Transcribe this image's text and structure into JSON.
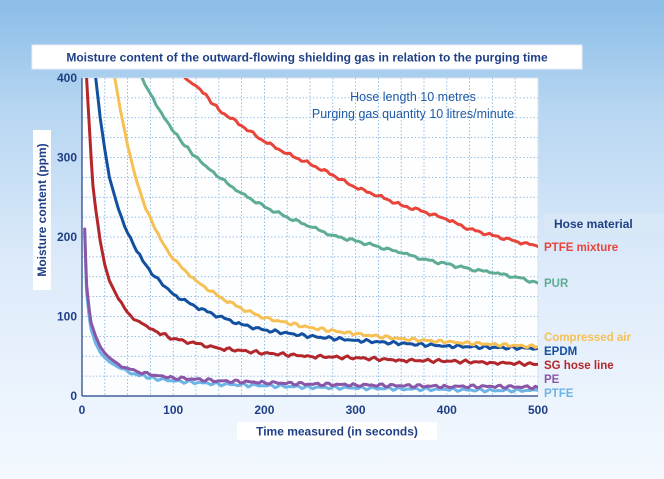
{
  "chart_data": {
    "type": "line",
    "title": "Moisture content of the outward-flowing shielding gas in relation to the purging time",
    "xlabel": "Time measured (in seconds)",
    "ylabel": "Moisture content (ppm)",
    "xlim": [
      0,
      500
    ],
    "ylim": [
      0,
      400
    ],
    "x_ticks": [
      "0",
      "100",
      "200",
      "300",
      "400",
      "500"
    ],
    "y_ticks": [
      "0",
      "100",
      "200",
      "300",
      "400"
    ],
    "grid": "on, dotted",
    "annotation": [
      "Hose length 10 metres",
      "Purging gas quantity 10 litres/minute"
    ],
    "legend_title": "Hose material",
    "legend_placement": "right",
    "series": [
      {
        "name": "PTFE mixture",
        "color": "#e8443a",
        "x": [
          113,
          130,
          150,
          175,
          200,
          225,
          250,
          275,
          300,
          325,
          350,
          375,
          400,
          425,
          450,
          475,
          500
        ],
        "y": [
          400,
          385,
          360,
          340,
          320,
          305,
          292,
          278,
          262,
          252,
          240,
          232,
          222,
          210,
          202,
          195,
          188
        ]
      },
      {
        "name": "PUR",
        "color": "#5fac94",
        "x": [
          66,
          75,
          90,
          110,
          130,
          150,
          175,
          200,
          225,
          250,
          275,
          300,
          325,
          350,
          375,
          400,
          425,
          450,
          475,
          500
        ],
        "y": [
          400,
          380,
          350,
          318,
          295,
          275,
          255,
          238,
          225,
          213,
          202,
          195,
          188,
          180,
          172,
          166,
          160,
          155,
          150,
          142
        ]
      },
      {
        "name": "Compressed air",
        "color": "#f6c055",
        "x": [
          36,
          42,
          50,
          60,
          70,
          80,
          90,
          100,
          125,
          150,
          175,
          200,
          250,
          300,
          350,
          400,
          450,
          500
        ],
        "y": [
          400,
          360,
          315,
          270,
          235,
          210,
          190,
          172,
          145,
          125,
          110,
          98,
          86,
          78,
          72,
          68,
          65,
          62
        ]
      },
      {
        "name": "EPDM",
        "color": "#1350a0",
        "x": [
          15,
          20,
          25,
          30,
          40,
          50,
          60,
          70,
          80,
          100,
          125,
          150,
          175,
          200,
          250,
          300,
          350,
          400,
          450,
          500
        ],
        "y": [
          400,
          350,
          310,
          275,
          235,
          205,
          182,
          165,
          150,
          128,
          112,
          100,
          90,
          83,
          75,
          70,
          66,
          63,
          61,
          60
        ]
      },
      {
        "name": "SG hose line",
        "color": "#b3262a",
        "x": [
          5,
          8,
          10,
          12,
          15,
          20,
          25,
          30,
          40,
          50,
          60,
          80,
          100,
          125,
          150,
          200,
          250,
          300,
          350,
          400,
          450,
          500
        ],
        "y": [
          400,
          340,
          300,
          265,
          235,
          195,
          165,
          145,
          122,
          105,
          95,
          82,
          72,
          66,
          60,
          54,
          50,
          48,
          45,
          44,
          42,
          40
        ]
      },
      {
        "name": "PE",
        "color": "#8a56a8",
        "x": [
          3,
          5,
          8,
          10,
          15,
          20,
          25,
          30,
          40,
          50,
          60,
          80,
          100,
          150,
          200,
          250,
          300,
          350,
          400,
          450,
          500
        ],
        "y": [
          210,
          140,
          108,
          92,
          75,
          62,
          54,
          48,
          40,
          35,
          31,
          26,
          23,
          19,
          17,
          15,
          14,
          13,
          12,
          12,
          11
        ]
      },
      {
        "name": "PTFE",
        "color": "#6cb4e6",
        "x": [
          3,
          5,
          8,
          10,
          15,
          20,
          25,
          30,
          40,
          50,
          60,
          80,
          100,
          150,
          200,
          250,
          300,
          350,
          400,
          450,
          500
        ],
        "y": [
          205,
          130,
          98,
          84,
          66,
          55,
          48,
          43,
          36,
          31,
          27,
          22,
          19,
          15,
          13,
          11,
          10,
          9,
          8,
          7,
          7
        ]
      }
    ]
  }
}
